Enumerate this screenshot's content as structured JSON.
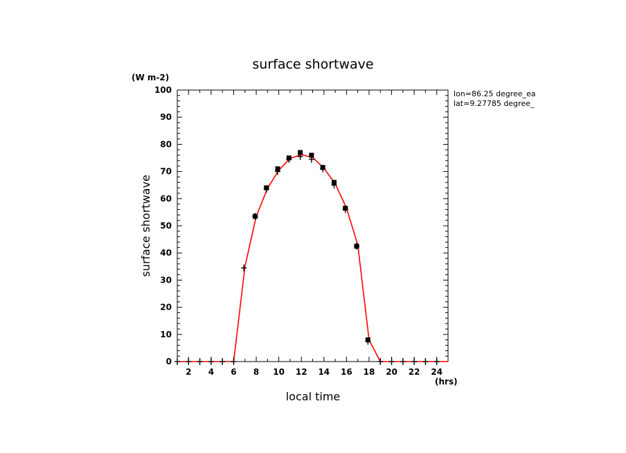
{
  "chart_data": {
    "type": "scatter",
    "title": "surface shortwave",
    "xlabel": "local time",
    "ylabel": "surface shortwave",
    "x_unit": "(hrs)",
    "y_unit": "(W m-2)",
    "annotations": [
      "lon=86.25 degree_ea",
      "lat=9.27785 degree_"
    ],
    "xlim": [
      1,
      25
    ],
    "ylim": [
      0,
      100
    ],
    "x_ticks": [
      2,
      4,
      6,
      8,
      10,
      12,
      14,
      16,
      18,
      20,
      22,
      24
    ],
    "y_ticks": [
      0,
      10,
      20,
      30,
      40,
      50,
      60,
      70,
      80,
      90,
      100
    ],
    "grid": false,
    "colors": {
      "fit_line": "#ff0000",
      "markers": "#000000"
    },
    "series": [
      {
        "kind": "line",
        "x": [
          1,
          2,
          3,
          4,
          5,
          6,
          7,
          8,
          9,
          10,
          11,
          12,
          13,
          14,
          15,
          16,
          17,
          18,
          19,
          20,
          21,
          22,
          23,
          24,
          25
        ],
        "values": [
          0,
          0,
          0,
          0,
          0,
          0,
          35,
          53.5,
          63.8,
          70.5,
          74.8,
          76.2,
          75.2,
          71.2,
          65.5,
          56.5,
          43,
          8,
          0,
          0,
          0,
          0,
          0,
          0,
          0
        ]
      },
      {
        "kind": "scatter",
        "marker": "plus",
        "points": [
          [
            1,
            0
          ],
          [
            2,
            0
          ],
          [
            3,
            0
          ],
          [
            4,
            0
          ],
          [
            5,
            0
          ],
          [
            6,
            0
          ],
          [
            6.9,
            34.5
          ],
          [
            7.9,
            53.5
          ],
          [
            8.9,
            63.5
          ],
          [
            9.9,
            70
          ],
          [
            10.9,
            74.5
          ],
          [
            11.9,
            75.5
          ],
          [
            12.9,
            74.5
          ],
          [
            13.9,
            71
          ],
          [
            14.9,
            65
          ],
          [
            15.9,
            56
          ],
          [
            16.9,
            42.5
          ],
          [
            17.9,
            7.5
          ],
          [
            19,
            0
          ],
          [
            20,
            0
          ],
          [
            21,
            0
          ],
          [
            22,
            0
          ],
          [
            23,
            0
          ],
          [
            24,
            0
          ]
        ]
      },
      {
        "kind": "scatter",
        "marker": "square",
        "points": [
          [
            7.9,
            53.5
          ],
          [
            8.9,
            64
          ],
          [
            9.9,
            71
          ],
          [
            10.9,
            75
          ],
          [
            11.9,
            77
          ],
          [
            12.9,
            76
          ],
          [
            13.9,
            71.5
          ],
          [
            14.9,
            66
          ],
          [
            15.9,
            56.5
          ],
          [
            16.9,
            42.5
          ],
          [
            17.9,
            8
          ]
        ]
      }
    ]
  }
}
